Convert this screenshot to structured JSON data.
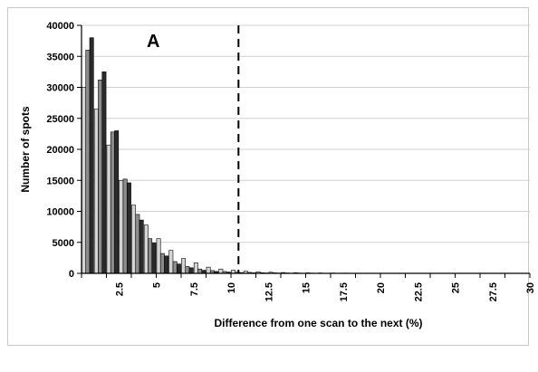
{
  "chart_data": {
    "type": "bar",
    "title": "",
    "panel_label": "A",
    "xlabel": "Difference from one scan to the next (%)",
    "ylabel": "Number of spots",
    "ylim": [
      0,
      40000
    ],
    "yticks": [
      0,
      5000,
      10000,
      15000,
      20000,
      25000,
      30000,
      35000,
      40000
    ],
    "xticks": [
      "2.5",
      "5",
      "7.5",
      "10",
      "12.5",
      "15",
      "17.5",
      "20",
      "22.5",
      "25",
      "27.5",
      "30"
    ],
    "bin_width": 0.833,
    "bin_count": 36,
    "threshold_line_x": 10.5,
    "series_colors": [
      "#d4d4d4",
      "#8c8c8c",
      "#2b2b2b"
    ],
    "series": [
      {
        "values": [
          30000,
          26500,
          20700,
          15000,
          11000,
          7800,
          5600,
          3700,
          2400,
          1700,
          1000,
          700,
          500,
          350,
          250,
          180,
          130,
          100,
          80,
          60,
          50,
          40,
          30,
          25,
          20,
          15,
          12,
          10,
          8,
          6,
          5,
          4,
          3,
          2,
          2,
          1
        ]
      },
      {
        "values": [
          36000,
          31200,
          22800,
          15200,
          9500,
          5600,
          3200,
          1900,
          1100,
          700,
          450,
          300,
          200,
          150,
          100,
          80,
          60,
          45,
          35,
          25,
          20,
          15,
          12,
          10,
          8,
          6,
          5,
          4,
          3,
          2,
          2,
          1,
          1,
          1,
          0,
          0
        ]
      },
      {
        "values": [
          38000,
          32500,
          23000,
          14600,
          8600,
          4900,
          2800,
          1500,
          900,
          500,
          300,
          200,
          130,
          90,
          60,
          45,
          35,
          25,
          20,
          15,
          12,
          10,
          8,
          6,
          5,
          4,
          3,
          2,
          2,
          1,
          1,
          1,
          0,
          0,
          0,
          0
        ]
      }
    ]
  }
}
